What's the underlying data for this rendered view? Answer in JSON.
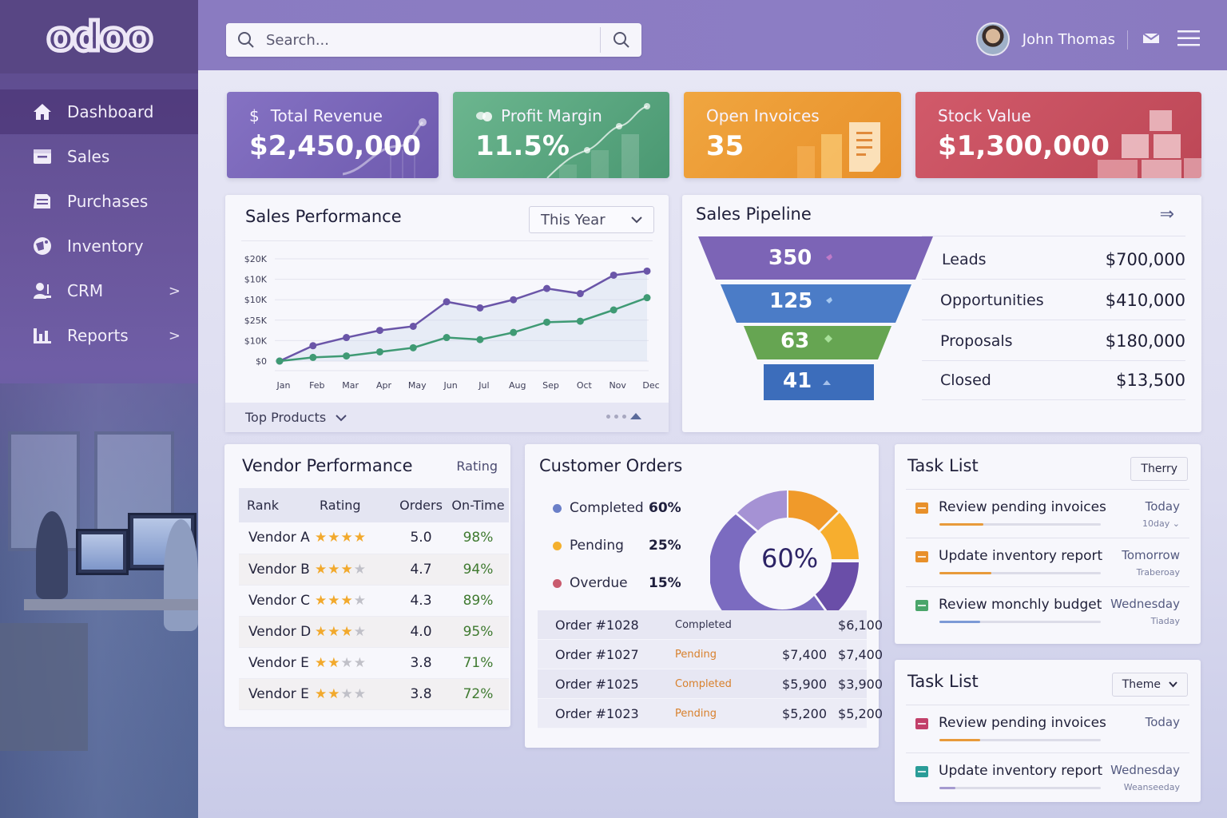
{
  "app": {
    "logo": "odoo"
  },
  "topbar": {
    "search_placeholder": "Search...",
    "user_name": "John Thomas"
  },
  "sidebar": {
    "items": [
      {
        "label": "Dashboard",
        "icon": "home-icon",
        "active": true
      },
      {
        "label": "Sales",
        "icon": "sales-icon"
      },
      {
        "label": "Purchases",
        "icon": "purchases-icon"
      },
      {
        "label": "Inventory",
        "icon": "inventory-icon"
      },
      {
        "label": "CRM",
        "icon": "crm-icon",
        "chevron": ">"
      },
      {
        "label": "Reports",
        "icon": "reports-icon",
        "chevron": ">"
      }
    ]
  },
  "kpis": [
    {
      "label": "Total Revenue",
      "prefix": "$",
      "value": "$2,450,000",
      "color": "#7a66b8"
    },
    {
      "label": "Profit Margin",
      "value": "11.5%",
      "color": "#5ba782"
    },
    {
      "label": "Open Invoices",
      "value": "35",
      "color": "#ec9c36"
    },
    {
      "label": "Stock Value",
      "value": "$1,300,000",
      "color": "#c9505f"
    }
  ],
  "sales_performance": {
    "title": "Sales Performance",
    "period": "This Year",
    "footer_label": "Top Products"
  },
  "chart_data": {
    "type": "line",
    "title": "Sales Performance",
    "categories": [
      "Jan",
      "Feb",
      "Mar",
      "Apr",
      "May",
      "Jun",
      "Jul",
      "Aug",
      "Sep",
      "Oct",
      "Nov",
      "Dec"
    ],
    "y_tick_labels": [
      "$20K",
      "$10K",
      "$10K",
      "$25K",
      "$10K",
      "$0"
    ],
    "series": [
      {
        "name": "Series 1 (purple)",
        "color": "#6a55a8",
        "values": [
          0,
          7.5,
          11.5,
          15,
          17,
          29,
          26,
          30,
          35.5,
          33,
          42,
          44
        ]
      },
      {
        "name": "Series 2 (green)",
        "color": "#3f9a74",
        "values": [
          0,
          1.8,
          2.5,
          4.5,
          6.5,
          11.5,
          10.5,
          14,
          19,
          19.5,
          25,
          31
        ]
      }
    ],
    "ylim": [
      0,
      50
    ],
    "grid": true,
    "legend": "none"
  },
  "pipeline": {
    "title": "Sales Pipeline",
    "stages": [
      {
        "count": "350",
        "label": "Leads",
        "amount": "$700,000",
        "color": "#8066b8"
      },
      {
        "count": "125",
        "label": "Opportunities",
        "amount": "$410,000",
        "color": "#4d7cc6"
      },
      {
        "count": "63",
        "label": "Proposals",
        "amount": "$180,000",
        "color": "#6aa653"
      },
      {
        "count": "41",
        "label": "Closed",
        "amount": "$13,500",
        "color": "#3d6fbc"
      }
    ]
  },
  "vendor_performance": {
    "title": "Vendor Performance",
    "sort_label": "Rating",
    "columns": [
      "Rank",
      "Rating",
      "Orders",
      "On-Time"
    ],
    "rows": [
      {
        "name": "Vendor A",
        "stars": 4,
        "orders": "5.0",
        "ontime": "98%"
      },
      {
        "name": "Vendor B",
        "stars": 3,
        "orders": "4.7",
        "ontime": "94%"
      },
      {
        "name": "Vendor C",
        "stars": 3,
        "orders": "4.3",
        "ontime": "89%"
      },
      {
        "name": "Vendor D",
        "stars": 3,
        "orders": "4.0",
        "ontime": "95%"
      },
      {
        "name": "Vendor E",
        "stars": 2,
        "orders": "3.8",
        "ontime": "71%"
      },
      {
        "name": "Vendor E",
        "stars": 2,
        "orders": "3.8",
        "ontime": "72%"
      }
    ]
  },
  "customer_orders": {
    "title": "Customer Orders",
    "center_label": "60%",
    "legend": [
      {
        "label": "Completed",
        "pct": "60%",
        "color": "#6a7fc8"
      },
      {
        "label": "Pending",
        "pct": "25%",
        "color": "#f4b02e"
      },
      {
        "label": "Overdue",
        "pct": "15%",
        "color": "#c95b6e"
      }
    ],
    "orders": [
      {
        "id": "Order #1028",
        "status": "Completed",
        "amount1": "",
        "amount2": "$6,100",
        "status_color": "#33334e"
      },
      {
        "id": "Order #1027",
        "status": "Pending",
        "amount1": "$7,400",
        "amount2": "$7,400",
        "status_color": "#d8802c"
      },
      {
        "id": "Order #1025",
        "status": "Completed",
        "amount1": "$5,900",
        "amount2": "$3,900",
        "status_color": "#d8802c"
      },
      {
        "id": "Order #1023",
        "status": "Pending",
        "amount1": "$5,200",
        "amount2": "$5,200",
        "status_color": "#d8802c"
      }
    ]
  },
  "task_list_1": {
    "title": "Task List",
    "filter": "Therry",
    "tasks": [
      {
        "name": "Review pending invoices",
        "due": "Today",
        "sub": "10day ⌄",
        "color": "#e8902a",
        "progress": 27,
        "bar_color": "#e89a3a"
      },
      {
        "name": "Update inventory report",
        "due": "Tomorrow",
        "sub": "Traberoay",
        "color": "#e8902a",
        "progress": 32,
        "bar_color": "#e89a3a"
      },
      {
        "name": "Review monchly budget",
        "due": "Wednesday",
        "sub": "Tiaday",
        "color": "#4aa56a",
        "progress": 25,
        "bar_color": "#7c9ad6"
      }
    ]
  },
  "task_list_2": {
    "title": "Task List",
    "filter": "Theme",
    "tasks": [
      {
        "name": "Review pending invoices",
        "due": "Today",
        "sub": "",
        "color": "#c2406a",
        "progress": 25,
        "bar_color": "#e89a3a"
      },
      {
        "name": "Update inventory report",
        "due": "Wednesday",
        "sub": "Weanseeday",
        "color": "#2a9c98",
        "progress": 10,
        "bar_color": "#a59ad0"
      }
    ]
  }
}
